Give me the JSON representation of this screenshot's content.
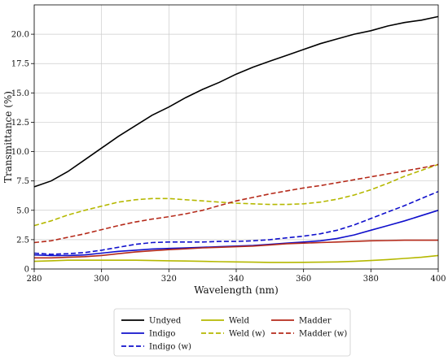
{
  "chart_data": {
    "type": "line",
    "title": "",
    "xlabel": "Wavelength (nm)",
    "ylabel": "Transmittance (%)",
    "xlim": [
      280,
      400
    ],
    "ylim": [
      0,
      22.5
    ],
    "xticks": [
      "280",
      "300",
      "320",
      "340",
      "360",
      "380",
      "400"
    ],
    "yticks": [
      "0",
      "2.5",
      "5.0",
      "7.5",
      "10.0",
      "12.5",
      "15.0",
      "17.5",
      "20.0"
    ],
    "grid": true,
    "legend_placement": "bottom-center",
    "x": [
      280,
      285,
      290,
      295,
      300,
      305,
      310,
      315,
      320,
      325,
      330,
      335,
      340,
      345,
      350,
      355,
      360,
      365,
      370,
      375,
      380,
      385,
      390,
      395,
      400
    ],
    "series": [
      {
        "name": "Undyed",
        "color": "#000000",
        "dash": "solid",
        "values": [
          7.0,
          7.5,
          8.3,
          9.3,
          10.3,
          11.3,
          12.2,
          13.1,
          13.8,
          14.6,
          15.3,
          15.9,
          16.6,
          17.2,
          17.7,
          18.2,
          18.7,
          19.2,
          19.6,
          20.0,
          20.3,
          20.7,
          21.0,
          21.2,
          21.5
        ]
      },
      {
        "name": "Indigo",
        "color": "#1010cc",
        "dash": "solid",
        "values": [
          1.2,
          1.15,
          1.15,
          1.2,
          1.35,
          1.5,
          1.6,
          1.7,
          1.75,
          1.8,
          1.85,
          1.9,
          1.95,
          2.0,
          2.1,
          2.2,
          2.3,
          2.4,
          2.6,
          2.9,
          3.3,
          3.7,
          4.1,
          4.55,
          5.0
        ]
      },
      {
        "name": "Indigo (w)",
        "color": "#1010cc",
        "dash": "dashed",
        "values": [
          1.35,
          1.25,
          1.3,
          1.4,
          1.6,
          1.85,
          2.1,
          2.25,
          2.3,
          2.3,
          2.3,
          2.35,
          2.35,
          2.4,
          2.5,
          2.65,
          2.8,
          3.0,
          3.3,
          3.75,
          4.3,
          4.85,
          5.4,
          6.0,
          6.6
        ]
      },
      {
        "name": "Weld",
        "color": "#b5b800",
        "dash": "solid",
        "values": [
          0.65,
          0.7,
          0.75,
          0.75,
          0.75,
          0.75,
          0.75,
          0.72,
          0.7,
          0.68,
          0.65,
          0.62,
          0.6,
          0.58,
          0.56,
          0.56,
          0.57,
          0.58,
          0.6,
          0.65,
          0.72,
          0.8,
          0.9,
          1.0,
          1.15
        ]
      },
      {
        "name": "Weld (w)",
        "color": "#b5b800",
        "dash": "dashed",
        "values": [
          3.7,
          4.1,
          4.6,
          5.0,
          5.35,
          5.7,
          5.9,
          6.0,
          6.0,
          5.9,
          5.8,
          5.7,
          5.6,
          5.55,
          5.5,
          5.5,
          5.55,
          5.7,
          5.95,
          6.3,
          6.75,
          7.3,
          7.9,
          8.4,
          8.9
        ]
      },
      {
        "name": "Madder",
        "color": "#b52a1a",
        "dash": "solid",
        "values": [
          0.95,
          0.95,
          1.0,
          1.05,
          1.15,
          1.3,
          1.45,
          1.55,
          1.65,
          1.72,
          1.8,
          1.85,
          1.9,
          1.95,
          2.05,
          2.15,
          2.2,
          2.25,
          2.3,
          2.35,
          2.4,
          2.42,
          2.45,
          2.45,
          2.45
        ]
      },
      {
        "name": "Madder (w)",
        "color": "#b52a1a",
        "dash": "dashed",
        "values": [
          2.25,
          2.4,
          2.7,
          3.0,
          3.35,
          3.7,
          4.0,
          4.25,
          4.45,
          4.7,
          5.0,
          5.4,
          5.8,
          6.1,
          6.4,
          6.65,
          6.9,
          7.1,
          7.35,
          7.6,
          7.85,
          8.1,
          8.35,
          8.6,
          8.9
        ]
      }
    ]
  }
}
